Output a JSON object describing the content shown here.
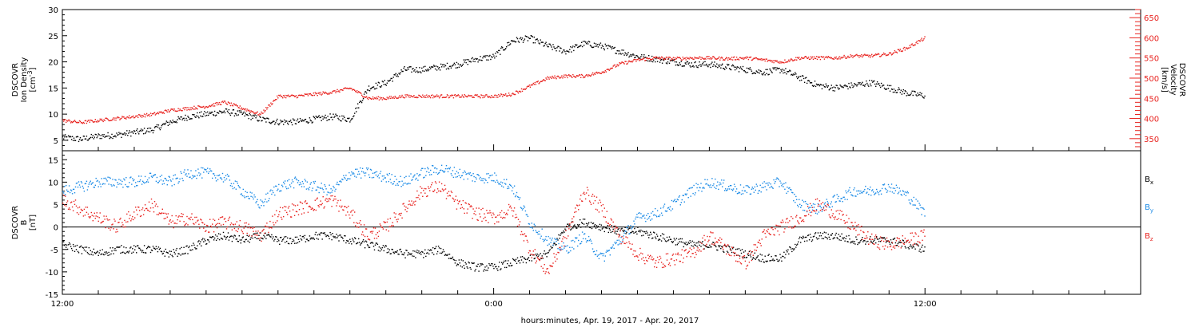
{
  "chart_data": [
    {
      "type": "scatter",
      "ylabel_left": [
        "DSCOVR",
        "Ion Density",
        "[cm",
        "-3",
        "]"
      ],
      "ylabel_right": [
        "DSCOVR",
        "Velocity",
        "[km/s]"
      ],
      "ylim_left": [
        3,
        30
      ],
      "ylim_right": [
        320,
        670
      ],
      "yticks_left": [
        5,
        10,
        15,
        20,
        25,
        30
      ],
      "yticks_right": [
        350,
        400,
        450,
        500,
        550,
        600,
        650
      ],
      "right_axis_color": "#e8221e",
      "series": [
        {
          "axis": "left",
          "color": "#000000",
          "x": [
            0,
            0.5,
            1,
            1.5,
            2,
            2.5,
            3,
            3.5,
            4,
            4.5,
            5,
            5.5,
            6,
            6.5,
            7,
            7.5,
            8,
            8.5,
            9,
            9.5,
            10,
            10.5,
            11,
            11.5,
            12,
            12.5,
            13,
            13.5,
            14,
            14.5,
            15,
            15.5,
            16,
            16.5,
            17,
            17.5,
            18,
            18.5,
            19,
            19.5,
            20,
            20.5,
            21,
            21.5,
            22,
            22.5,
            23,
            23.5,
            24
          ],
          "values": [
            5.5,
            5.2,
            5.8,
            6,
            6.5,
            7,
            8.5,
            9.5,
            10,
            10.5,
            10,
            9,
            8.5,
            8.5,
            9,
            9.5,
            9,
            15,
            16,
            18.5,
            18.5,
            19,
            19.5,
            20.5,
            21,
            24,
            24.5,
            23,
            22,
            23.5,
            23,
            22,
            21,
            20.5,
            20,
            19.5,
            19.5,
            19,
            18.5,
            18,
            18.5,
            17,
            15.5,
            15,
            15.5,
            16,
            15,
            14,
            13.5
          ]
        },
        {
          "axis": "right",
          "color": "#e8221e",
          "x": [
            0,
            0.5,
            1,
            1.5,
            2,
            2.5,
            3,
            3.5,
            4,
            4.5,
            5,
            5.5,
            6,
            6.5,
            7,
            7.5,
            8,
            8.5,
            9,
            9.5,
            10,
            10.5,
            11,
            11.5,
            12,
            12.5,
            13,
            13.5,
            14,
            14.5,
            15,
            15.5,
            16,
            16.5,
            17,
            17.5,
            18,
            18.5,
            19,
            19.5,
            20,
            20.5,
            21,
            21.5,
            22,
            22.5,
            23,
            23.5,
            24
          ],
          "values": [
            395,
            390,
            395,
            400,
            405,
            410,
            420,
            425,
            430,
            440,
            425,
            410,
            455,
            455,
            460,
            465,
            475,
            450,
            450,
            455,
            455,
            455,
            455,
            455,
            455,
            460,
            480,
            500,
            505,
            505,
            515,
            535,
            545,
            550,
            548,
            550,
            550,
            548,
            550,
            545,
            540,
            550,
            550,
            550,
            555,
            555,
            560,
            575,
            600
          ]
        }
      ]
    },
    {
      "type": "scatter",
      "ylabel": [
        "DSCOVR",
        "B",
        "[nT]"
      ],
      "ylim": [
        -15,
        17
      ],
      "yticks": [
        -15,
        -10,
        -5,
        0,
        5,
        10,
        15
      ],
      "zero_line": true,
      "legend_position": "right",
      "series": [
        {
          "name": "Bx",
          "legend": [
            "B",
            "x"
          ],
          "color": "#000000",
          "x": [
            0,
            0.5,
            1,
            1.5,
            2,
            2.5,
            3,
            3.5,
            4,
            4.5,
            5,
            5.5,
            6,
            6.5,
            7,
            7.5,
            8,
            8.5,
            9,
            9.5,
            10,
            10.5,
            11,
            11.5,
            12,
            12.5,
            13,
            13.5,
            14,
            14.5,
            15,
            15.5,
            16,
            16.5,
            17,
            17.5,
            18,
            18.5,
            19,
            19.5,
            20,
            20.5,
            21,
            21.5,
            22,
            22.5,
            23,
            23.5,
            24
          ],
          "values": [
            -4,
            -5,
            -6,
            -5,
            -5,
            -5,
            -6,
            -5,
            -3,
            -2,
            -3,
            -2,
            -3,
            -3,
            -2,
            -2,
            -3,
            -4,
            -5,
            -6,
            -6,
            -5,
            -8,
            -9,
            -9,
            -8,
            -7,
            -6,
            0,
            1,
            0,
            -1,
            -1,
            -2,
            -3,
            -4,
            -4,
            -5,
            -6,
            -7,
            -7,
            -3,
            -2,
            -2,
            -3,
            -3,
            -3,
            -4,
            -5
          ]
        },
        {
          "name": "By",
          "legend": [
            "B",
            "y"
          ],
          "color": "#1a8ae6",
          "x": [
            0,
            0.5,
            1,
            1.5,
            2,
            2.5,
            3,
            3.5,
            4,
            4.5,
            5,
            5.5,
            6,
            6.5,
            7,
            7.5,
            8,
            8.5,
            9,
            9.5,
            10,
            10.5,
            11,
            11.5,
            12,
            12.5,
            13,
            13.5,
            14,
            14.5,
            15,
            15.5,
            16,
            16.5,
            17,
            17.5,
            18,
            18.5,
            19,
            19.5,
            20,
            20.5,
            21,
            21.5,
            22,
            22.5,
            23,
            23.5,
            24
          ],
          "values": [
            8,
            9,
            10,
            10,
            10,
            11,
            10,
            12,
            12,
            11,
            8,
            5,
            9,
            10,
            9,
            8,
            12,
            12,
            11,
            10,
            12,
            13,
            12,
            11,
            11,
            9,
            1,
            -3,
            -5,
            -2,
            -7,
            -3,
            2,
            3,
            5,
            8,
            10,
            9,
            8,
            9,
            10,
            5,
            4,
            6,
            8,
            8,
            9,
            7,
            3
          ]
        },
        {
          "name": "Bz",
          "legend": [
            "B",
            "z"
          ],
          "color": "#e8221e",
          "x": [
            0,
            0.5,
            1,
            1.5,
            2,
            2.5,
            3,
            3.5,
            4,
            4.5,
            5,
            5.5,
            6,
            6.5,
            7,
            7.5,
            8,
            8.5,
            9,
            9.5,
            10,
            10.5,
            11,
            11.5,
            12,
            12.5,
            13,
            13.5,
            14,
            14.5,
            15,
            15.5,
            16,
            16.5,
            17,
            17.5,
            18,
            18.5,
            19,
            19.5,
            20,
            20.5,
            21,
            21.5,
            22,
            22.5,
            23,
            23.5,
            24
          ],
          "values": [
            6,
            4,
            2,
            0,
            3,
            5,
            1,
            2,
            0,
            1,
            0,
            -2,
            3,
            4,
            5,
            6,
            3,
            -2,
            0,
            4,
            8,
            9,
            5,
            3,
            2,
            4,
            -5,
            -10,
            -2,
            8,
            4,
            -2,
            -6,
            -8,
            -7,
            -6,
            -2,
            -5,
            -8,
            -2,
            0,
            2,
            5,
            3,
            0,
            -3,
            -4,
            -3,
            -2
          ]
        }
      ]
    }
  ],
  "xaxis": {
    "xlim": [
      0,
      30
    ],
    "major_ticks": [
      0,
      12,
      24
    ],
    "minor_step": 1,
    "tick_labels": [
      "12:00",
      "0:00",
      "12:00"
    ],
    "title": "hours:minutes, Apr. 19, 2017 - Apr. 20, 2017"
  }
}
